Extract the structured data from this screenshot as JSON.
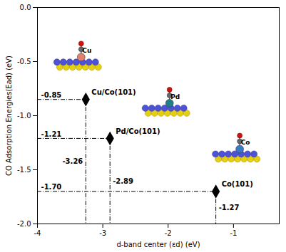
{
  "chart_data": {
    "type": "scatter",
    "x_label": "d-band center (εd) (eV)",
    "y_label": "CO Adsorption Energies(Ead) (eV)",
    "x": [
      -3.26,
      -2.89,
      -1.27
    ],
    "values": [
      -0.85,
      -1.21,
      -1.7
    ],
    "value_labels": [
      "-0.85",
      "-1.21",
      "-1.70"
    ],
    "labels": [
      "Cu/Co(101)",
      "Pd/Co(101)",
      "Co(101)"
    ],
    "metals": [
      "Cu",
      "Pd",
      "Co"
    ],
    "xlim": [
      -4,
      -0.3
    ],
    "xticks": [
      -4,
      -3,
      -2,
      -1
    ],
    "ylim": [
      -2,
      0
    ],
    "yticks": [
      {
        "value": -2,
        "label": "-2.0"
      },
      {
        "value": -1.5,
        "label": "-1.5"
      },
      {
        "value": -1,
        "label": "-1.0"
      },
      -0.5,
      {
        "value": 0,
        "label": "0.0"
      }
    ],
    "color": "#000000",
    "marker": "diamond",
    "line_style": "dashdot"
  }
}
